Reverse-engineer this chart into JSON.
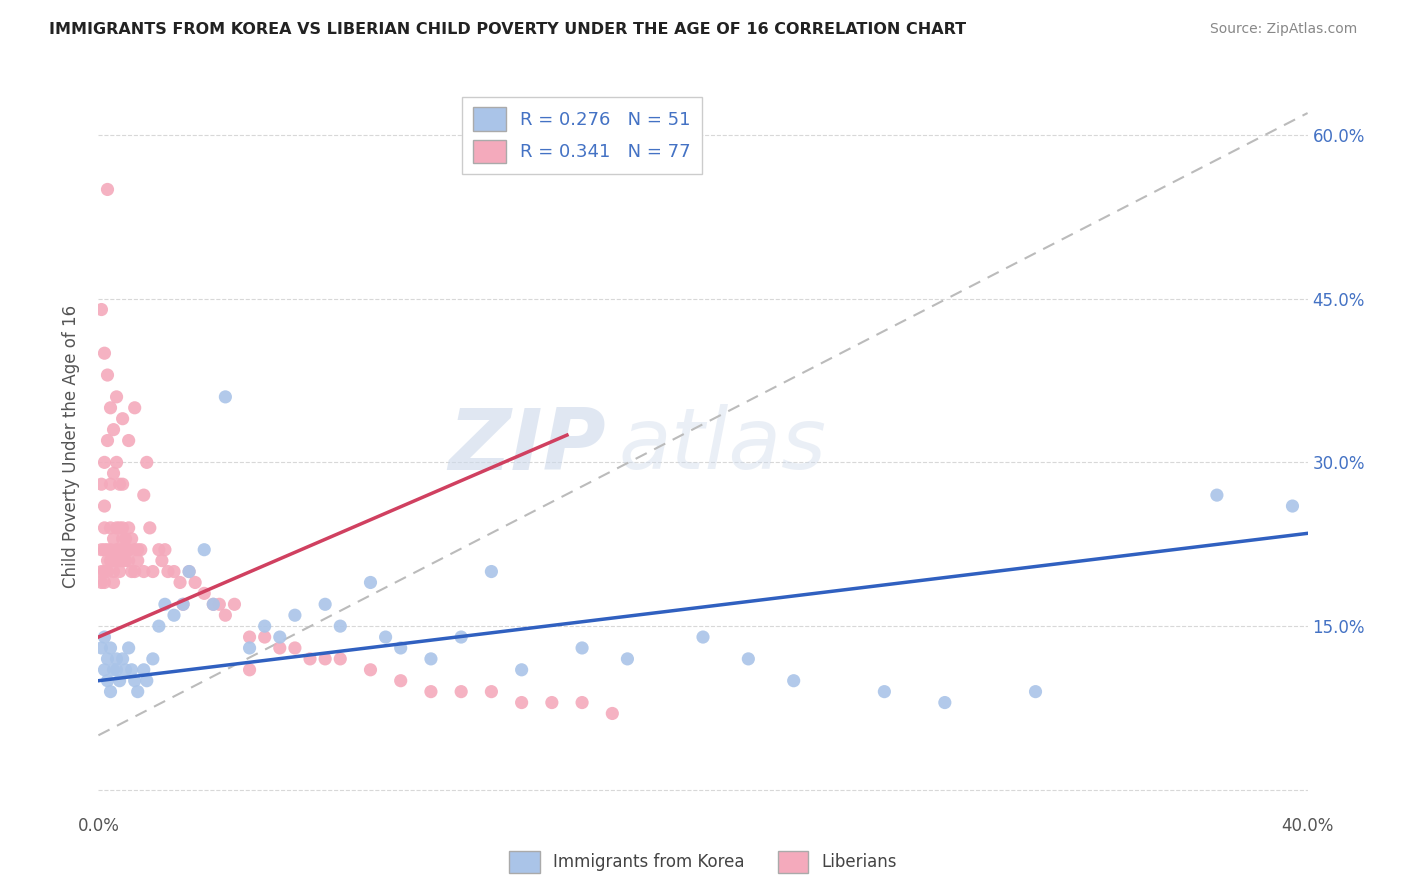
{
  "title": "IMMIGRANTS FROM KOREA VS LIBERIAN CHILD POVERTY UNDER THE AGE OF 16 CORRELATION CHART",
  "source": "Source: ZipAtlas.com",
  "ylabel": "Child Poverty Under the Age of 16",
  "xlim": [
    0.0,
    0.4
  ],
  "ylim": [
    -0.02,
    0.65
  ],
  "korea_R": 0.276,
  "korea_N": 51,
  "liberia_R": 0.341,
  "liberia_N": 77,
  "korea_color": "#aac4e8",
  "liberia_color": "#f4aabc",
  "korea_line_color": "#3060c0",
  "liberia_line_color": "#d04060",
  "legend_label_korea": "Immigrants from Korea",
  "legend_label_liberia": "Liberians",
  "watermark_zip": "ZIP",
  "watermark_atlas": "atlas",
  "background_color": "#ffffff",
  "grid_color": "#d8d8d8",
  "korea_x": [
    0.001,
    0.002,
    0.002,
    0.003,
    0.003,
    0.004,
    0.004,
    0.005,
    0.006,
    0.006,
    0.007,
    0.008,
    0.009,
    0.01,
    0.011,
    0.012,
    0.013,
    0.015,
    0.016,
    0.018,
    0.02,
    0.022,
    0.025,
    0.028,
    0.03,
    0.035,
    0.038,
    0.042,
    0.05,
    0.055,
    0.06,
    0.065,
    0.075,
    0.08,
    0.09,
    0.095,
    0.1,
    0.11,
    0.12,
    0.13,
    0.14,
    0.16,
    0.175,
    0.2,
    0.215,
    0.23,
    0.26,
    0.28,
    0.31,
    0.37,
    0.395
  ],
  "korea_y": [
    0.13,
    0.11,
    0.14,
    0.12,
    0.1,
    0.13,
    0.09,
    0.11,
    0.12,
    0.11,
    0.1,
    0.12,
    0.11,
    0.13,
    0.11,
    0.1,
    0.09,
    0.11,
    0.1,
    0.12,
    0.15,
    0.17,
    0.16,
    0.17,
    0.2,
    0.22,
    0.17,
    0.36,
    0.13,
    0.15,
    0.14,
    0.16,
    0.17,
    0.15,
    0.19,
    0.14,
    0.13,
    0.12,
    0.14,
    0.2,
    0.11,
    0.13,
    0.12,
    0.14,
    0.12,
    0.1,
    0.09,
    0.08,
    0.09,
    0.27,
    0.26
  ],
  "liberia_x": [
    0.001,
    0.001,
    0.001,
    0.002,
    0.002,
    0.002,
    0.002,
    0.003,
    0.003,
    0.003,
    0.004,
    0.004,
    0.004,
    0.005,
    0.005,
    0.005,
    0.005,
    0.006,
    0.006,
    0.006,
    0.007,
    0.007,
    0.007,
    0.007,
    0.008,
    0.008,
    0.008,
    0.009,
    0.009,
    0.009,
    0.01,
    0.01,
    0.01,
    0.011,
    0.011,
    0.012,
    0.012,
    0.013,
    0.013,
    0.014,
    0.015,
    0.015,
    0.016,
    0.017,
    0.018,
    0.02,
    0.021,
    0.022,
    0.023,
    0.025,
    0.027,
    0.028,
    0.03,
    0.032,
    0.035,
    0.038,
    0.04,
    0.042,
    0.045,
    0.05,
    0.055,
    0.06,
    0.065,
    0.07,
    0.075,
    0.08,
    0.09,
    0.1,
    0.11,
    0.12,
    0.13,
    0.14,
    0.15,
    0.16,
    0.17,
    0.05,
    0.003
  ],
  "liberia_y": [
    0.19,
    0.22,
    0.2,
    0.2,
    0.22,
    0.24,
    0.19,
    0.21,
    0.22,
    0.2,
    0.22,
    0.24,
    0.21,
    0.21,
    0.23,
    0.2,
    0.19,
    0.22,
    0.21,
    0.24,
    0.22,
    0.24,
    0.21,
    0.2,
    0.23,
    0.24,
    0.21,
    0.23,
    0.22,
    0.21,
    0.22,
    0.24,
    0.21,
    0.23,
    0.2,
    0.22,
    0.2,
    0.22,
    0.21,
    0.22,
    0.2,
    0.27,
    0.3,
    0.24,
    0.2,
    0.22,
    0.21,
    0.22,
    0.2,
    0.2,
    0.19,
    0.17,
    0.2,
    0.19,
    0.18,
    0.17,
    0.17,
    0.16,
    0.17,
    0.14,
    0.14,
    0.13,
    0.13,
    0.12,
    0.12,
    0.12,
    0.11,
    0.1,
    0.09,
    0.09,
    0.09,
    0.08,
    0.08,
    0.08,
    0.07,
    0.11,
    0.55
  ],
  "liberia_high_x": [
    0.001,
    0.002,
    0.003,
    0.004,
    0.005,
    0.006,
    0.008,
    0.01,
    0.012
  ],
  "liberia_high_y": [
    0.44,
    0.4,
    0.38,
    0.35,
    0.33,
    0.36,
    0.34,
    0.32,
    0.35
  ],
  "liberia_x2": [
    0.001,
    0.002,
    0.002,
    0.003,
    0.004,
    0.005,
    0.006,
    0.007,
    0.008
  ],
  "liberia_y2": [
    0.28,
    0.26,
    0.3,
    0.32,
    0.28,
    0.29,
    0.3,
    0.28,
    0.28
  ]
}
